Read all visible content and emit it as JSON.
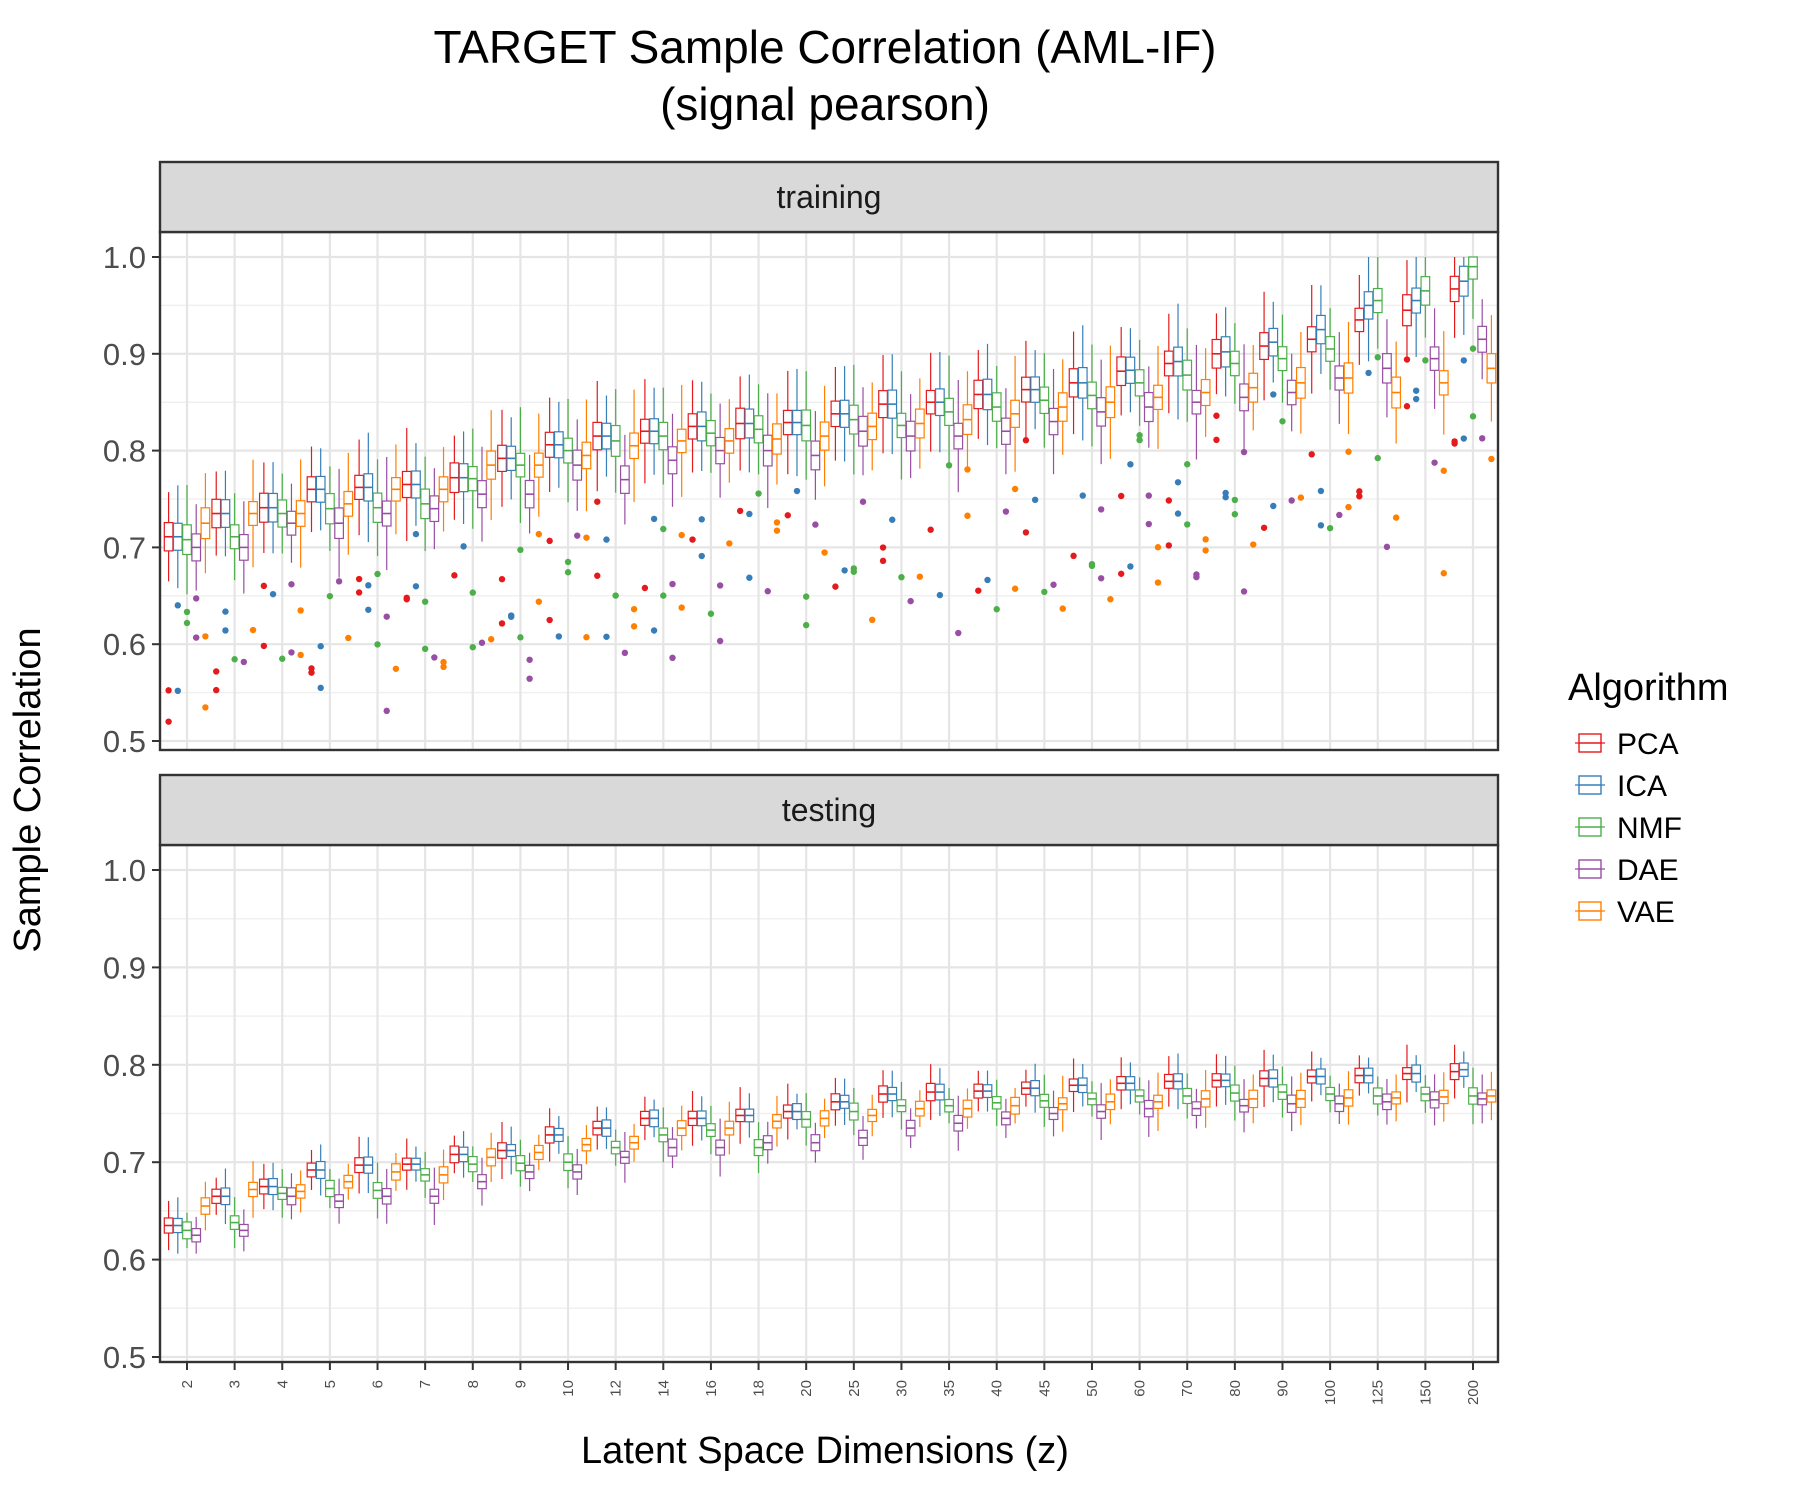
{
  "chart_data": {
    "type": "boxplot",
    "title": "TARGET Sample Correlation (AML-IF)",
    "subtitle": "(signal pearson)",
    "xlabel": "Latent Space Dimensions (z)",
    "ylabel": "Sample Correlation",
    "ylim": [
      0.5,
      1.0
    ],
    "yticks": [
      "0.5",
      "0.6",
      "0.7",
      "0.8",
      "0.9",
      "1.0"
    ],
    "grid": true,
    "legend": {
      "title": "Algorithm",
      "position": "right"
    },
    "facets": [
      "training",
      "testing"
    ],
    "categories": [
      "2",
      "3",
      "4",
      "5",
      "6",
      "7",
      "8",
      "9",
      "10",
      "12",
      "14",
      "16",
      "18",
      "20",
      "25",
      "30",
      "35",
      "40",
      "45",
      "50",
      "60",
      "70",
      "80",
      "90",
      "100",
      "125",
      "150",
      "200"
    ],
    "series": [
      {
        "name": "PCA",
        "color": "#E41A1C",
        "training_median": [
          0.711,
          0.735,
          0.741,
          0.76,
          0.762,
          0.765,
          0.772,
          0.792,
          0.806,
          0.815,
          0.82,
          0.825,
          0.828,
          0.829,
          0.838,
          0.848,
          0.85,
          0.858,
          0.863,
          0.87,
          0.882,
          0.89,
          0.9,
          0.908,
          0.915,
          0.935,
          0.945,
          0.967
        ],
        "testing_median": [
          0.635,
          0.665,
          0.675,
          0.692,
          0.697,
          0.698,
          0.708,
          0.712,
          0.728,
          0.735,
          0.745,
          0.745,
          0.748,
          0.752,
          0.762,
          0.77,
          0.772,
          0.773,
          0.776,
          0.779,
          0.781,
          0.783,
          0.784,
          0.786,
          0.788,
          0.789,
          0.791,
          0.793
        ]
      },
      {
        "name": "ICA",
        "color": "#377EB8",
        "training_median": [
          0.711,
          0.735,
          0.741,
          0.76,
          0.762,
          0.765,
          0.772,
          0.792,
          0.806,
          0.815,
          0.82,
          0.825,
          0.828,
          0.829,
          0.838,
          0.848,
          0.85,
          0.858,
          0.863,
          0.87,
          0.883,
          0.892,
          0.902,
          0.912,
          0.925,
          0.95,
          0.955,
          0.975
        ],
        "testing_median": [
          0.635,
          0.665,
          0.675,
          0.692,
          0.697,
          0.698,
          0.708,
          0.712,
          0.728,
          0.735,
          0.745,
          0.745,
          0.748,
          0.752,
          0.762,
          0.77,
          0.772,
          0.773,
          0.776,
          0.779,
          0.781,
          0.783,
          0.784,
          0.786,
          0.788,
          0.789,
          0.791,
          0.795
        ]
      },
      {
        "name": "NMF",
        "color": "#4DAF4A",
        "training_median": [
          0.708,
          0.711,
          0.735,
          0.74,
          0.741,
          0.745,
          0.771,
          0.785,
          0.8,
          0.81,
          0.815,
          0.818,
          0.822,
          0.826,
          0.832,
          0.826,
          0.84,
          0.845,
          0.852,
          0.857,
          0.87,
          0.878,
          0.89,
          0.895,
          0.905,
          0.955,
          0.965,
          0.99
        ],
        "testing_median": [
          0.63,
          0.638,
          0.668,
          0.673,
          0.671,
          0.687,
          0.698,
          0.699,
          0.7,
          0.715,
          0.728,
          0.733,
          0.715,
          0.744,
          0.752,
          0.758,
          0.758,
          0.761,
          0.763,
          0.765,
          0.768,
          0.768,
          0.771,
          0.772,
          0.77,
          0.768,
          0.77,
          0.768
        ]
      },
      {
        "name": "DAE",
        "color": "#984EA3",
        "training_median": [
          0.7,
          0.7,
          0.725,
          0.725,
          0.735,
          0.74,
          0.755,
          0.755,
          0.785,
          0.77,
          0.79,
          0.8,
          0.8,
          0.795,
          0.82,
          0.815,
          0.815,
          0.82,
          0.83,
          0.84,
          0.845,
          0.85,
          0.855,
          0.86,
          0.875,
          0.885,
          0.895,
          0.915
        ],
        "testing_median": [
          0.625,
          0.63,
          0.665,
          0.66,
          0.665,
          0.665,
          0.68,
          0.69,
          0.69,
          0.705,
          0.715,
          0.715,
          0.72,
          0.72,
          0.725,
          0.735,
          0.74,
          0.745,
          0.75,
          0.752,
          0.755,
          0.755,
          0.758,
          0.76,
          0.76,
          0.762,
          0.764,
          0.765
        ]
      },
      {
        "name": "VAE",
        "color": "#FF7F00",
        "training_median": [
          0.725,
          0.735,
          0.735,
          0.745,
          0.76,
          0.76,
          0.785,
          0.785,
          0.795,
          0.805,
          0.81,
          0.81,
          0.812,
          0.815,
          0.825,
          0.828,
          0.832,
          0.838,
          0.845,
          0.85,
          0.855,
          0.86,
          0.865,
          0.87,
          0.875,
          0.86,
          0.87,
          0.885
        ],
        "testing_median": [
          0.655,
          0.672,
          0.67,
          0.68,
          0.69,
          0.687,
          0.705,
          0.71,
          0.718,
          0.72,
          0.735,
          0.735,
          0.742,
          0.745,
          0.748,
          0.755,
          0.755,
          0.758,
          0.76,
          0.762,
          0.762,
          0.765,
          0.765,
          0.765,
          0.766,
          0.766,
          0.767,
          0.768
        ]
      }
    ]
  }
}
